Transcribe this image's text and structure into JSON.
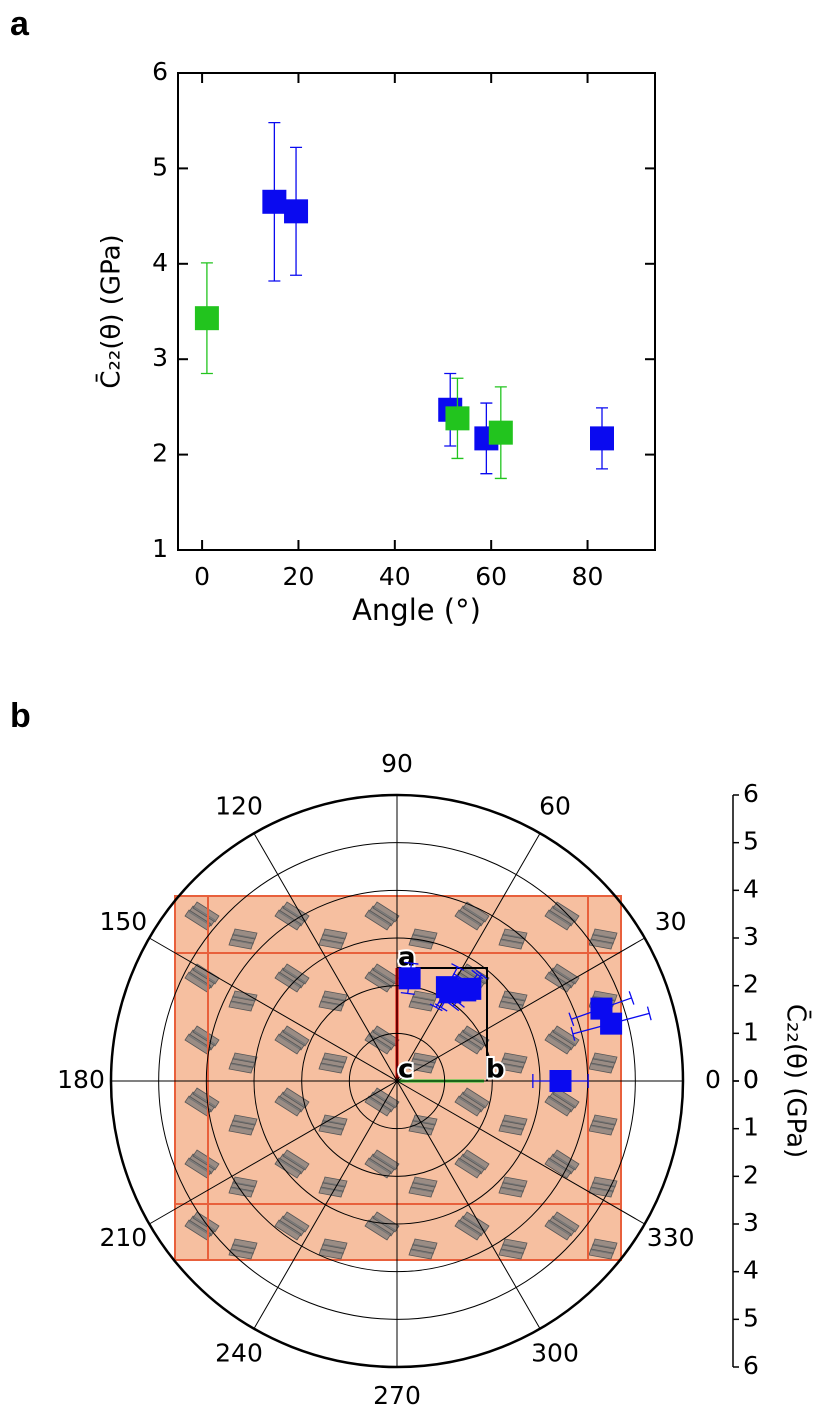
{
  "chart_data": [
    {
      "type": "scatter",
      "panel_label": "a",
      "x_label": "Angle (°)",
      "y_label": "C̄₂₂(θ) (GPa)",
      "xlim": [
        -5,
        94
      ],
      "xticks": [
        0,
        20,
        40,
        60,
        80
      ],
      "ylim": [
        1,
        6
      ],
      "yticks": [
        1,
        2,
        3,
        4,
        5,
        6
      ],
      "series": [
        {
          "color": "#0a0af0",
          "x": [
            15,
            19.5,
            51.5,
            59,
            83
          ],
          "values": [
            4.65,
            4.55,
            2.47,
            2.17,
            2.17
          ],
          "errors": [
            0.83,
            0.67,
            0.38,
            0.37,
            0.32
          ]
        },
        {
          "color": "#22c41e",
          "x": [
            1,
            53,
            62
          ],
          "values": [
            3.43,
            2.38,
            2.23
          ],
          "errors": [
            0.58,
            0.42,
            0.48
          ]
        }
      ]
    },
    {
      "type": "polar",
      "panel_label": "b",
      "r_label": "C̄₂₂(θ) (GPa)",
      "rlim": [
        0,
        6
      ],
      "rticks": [
        0,
        1,
        2,
        3,
        4,
        5,
        6
      ],
      "thetaticks": [
        0,
        30,
        60,
        90,
        120,
        150,
        180,
        210,
        240,
        270,
        300,
        330
      ],
      "inset_labels": [
        "a",
        "b",
        "c"
      ],
      "color": "#0a0af0",
      "theta": [
        0,
        15,
        19.5,
        51.5,
        53,
        59,
        62,
        83
      ],
      "r": [
        3.43,
        4.65,
        4.55,
        2.47,
        2.38,
        2.17,
        2.23,
        2.17
      ],
      "r_err": [
        0.58,
        0.83,
        0.67,
        0.38,
        0.42,
        0.37,
        0.48,
        0.32
      ]
    }
  ]
}
